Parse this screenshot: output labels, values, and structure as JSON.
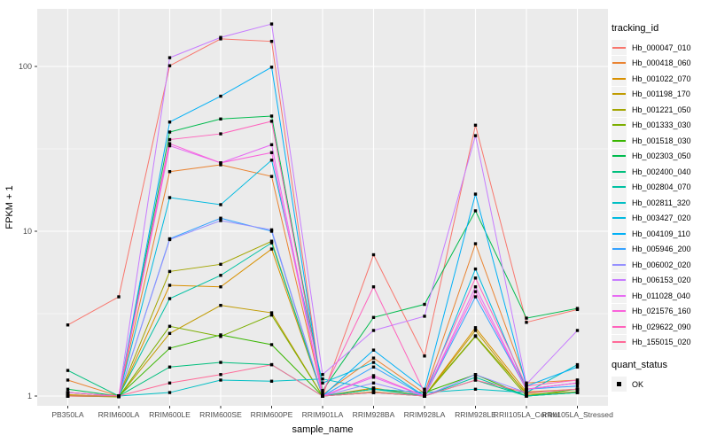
{
  "chart_data": {
    "type": "line",
    "title": "",
    "xlabel": "sample_name",
    "ylabel": "FPKM + 1",
    "y_scale": "log10",
    "ylim": [
      0.87,
      223
    ],
    "yticks": [
      1,
      10,
      100
    ],
    "grid": true,
    "legend_position": "right",
    "legend_title": "tracking_id",
    "legend2_title": "quant_status",
    "legend2_items": [
      "OK"
    ],
    "marker": "black-square",
    "panel_bg": "#EBEBEB",
    "grid_color": "#FFFFFF",
    "tick_label_color": "#4D4D4D",
    "axis_title_color": "#000000",
    "categories": [
      "PB350LA",
      "RRIM600LA",
      "RRIM600LE",
      "RRIM600SE",
      "RRIM600PE",
      "RRIM901LA",
      "RRIM928BA",
      "RRIM928LA",
      "RRIM928LE",
      "RRII105LA_Control",
      "RRII105LA_Stressed"
    ],
    "series": [
      {
        "name": "Hb_000047_010",
        "color": "#F8766D",
        "values": [
          2.7,
          4.0,
          101,
          147,
          142,
          1.0,
          7.2,
          1.75,
          44,
          2.8,
          3.35
        ]
      },
      {
        "name": "Hb_000418_060",
        "color": "#EA8331",
        "values": [
          1.25,
          1.0,
          23,
          25.3,
          21.5,
          1.02,
          1.7,
          1.04,
          8.4,
          1.2,
          1.25
        ]
      },
      {
        "name": "Hb_001022_070",
        "color": "#D89000",
        "values": [
          1.02,
          0.99,
          4.7,
          4.6,
          7.8,
          1.0,
          1.12,
          1.0,
          2.6,
          1.06,
          1.1
        ]
      },
      {
        "name": "Hb_001198_170",
        "color": "#C09B00",
        "values": [
          1.0,
          0.99,
          2.4,
          3.55,
          3.2,
          1.0,
          1.06,
          1.0,
          2.5,
          1.02,
          1.06
        ]
      },
      {
        "name": "Hb_001221_050",
        "color": "#A3A500",
        "values": [
          1.01,
          1.0,
          5.7,
          6.3,
          8.7,
          1.0,
          1.1,
          1.01,
          2.32,
          1.04,
          1.1
        ]
      },
      {
        "name": "Hb_001333_030",
        "color": "#7CAE00",
        "values": [
          1.0,
          0.99,
          2.65,
          2.3,
          3.1,
          1.0,
          1.05,
          1.0,
          2.3,
          1.0,
          1.05
        ]
      },
      {
        "name": "Hb_001518_030",
        "color": "#39B600",
        "values": [
          1.05,
          1.0,
          1.95,
          2.35,
          2.05,
          1.0,
          1.1,
          1.05,
          1.35,
          1.0,
          1.1
        ]
      },
      {
        "name": "Hb_002303_050",
        "color": "#00BB4E",
        "values": [
          1.1,
          1.0,
          40,
          48,
          50,
          1.08,
          3.0,
          3.6,
          13.3,
          2.97,
          3.4
        ]
      },
      {
        "name": "Hb_002400_040",
        "color": "#00BF7D",
        "values": [
          1.43,
          1.0,
          1.5,
          1.6,
          1.55,
          1.0,
          1.05,
          1.0,
          1.25,
          1.0,
          1.05
        ]
      },
      {
        "name": "Hb_002804_070",
        "color": "#00C1A3",
        "values": [
          1.0,
          1.0,
          3.9,
          5.4,
          8.5,
          1.0,
          1.1,
          1.0,
          1.3,
          1.0,
          1.05
        ]
      },
      {
        "name": "Hb_002811_320",
        "color": "#00BFC4",
        "values": [
          1.05,
          1.0,
          1.05,
          1.25,
          1.23,
          1.27,
          1.1,
          1.05,
          1.1,
          1.05,
          1.55
        ]
      },
      {
        "name": "Hb_003427_020",
        "color": "#00BAE0",
        "values": [
          1.0,
          1.0,
          16,
          14.5,
          27,
          1.2,
          1.6,
          1.0,
          5.9,
          1.1,
          1.2
        ]
      },
      {
        "name": "Hb_004109_110",
        "color": "#00B0F6",
        "values": [
          1.05,
          1.0,
          46,
          66,
          99,
          1.0,
          1.9,
          1.1,
          16.8,
          1.15,
          1.5
        ]
      },
      {
        "name": "Hb_005946_200",
        "color": "#35A2FF",
        "values": [
          1.0,
          1.0,
          9.0,
          12,
          10,
          1.0,
          1.5,
          1.0,
          4.0,
          1.1,
          1.15
        ]
      },
      {
        "name": "Hb_006002_020",
        "color": "#9590FF",
        "values": [
          1.0,
          1.0,
          8.9,
          11.6,
          10.2,
          1.0,
          1.2,
          1.0,
          1.35,
          1.05,
          1.1
        ]
      },
      {
        "name": "Hb_006153_020",
        "color": "#C77CFF",
        "values": [
          1.05,
          1.0,
          113,
          150,
          181,
          1.35,
          2.5,
          3.05,
          38,
          1.18,
          2.5
        ]
      },
      {
        "name": "Hb_011028_040",
        "color": "#E76BF3",
        "values": [
          1.0,
          1.0,
          33,
          26,
          33.5,
          1.0,
          1.3,
          1.0,
          4.6,
          1.1,
          1.2
        ]
      },
      {
        "name": "Hb_021576_160",
        "color": "#FA62DB",
        "values": [
          1.0,
          1.0,
          34,
          26,
          30,
          1.0,
          1.33,
          1.0,
          4.3,
          1.1,
          1.2
        ]
      },
      {
        "name": "Hb_029622_090",
        "color": "#FF62BC",
        "values": [
          1.05,
          1.0,
          36,
          39,
          46.5,
          1.05,
          4.6,
          1.05,
          5.2,
          1.15,
          1.25
        ]
      },
      {
        "name": "Hb_155015_020",
        "color": "#FF6A98",
        "values": [
          1.0,
          1.0,
          1.2,
          1.35,
          1.55,
          1.0,
          1.05,
          1.0,
          1.25,
          1.05,
          1.1
        ]
      }
    ]
  }
}
